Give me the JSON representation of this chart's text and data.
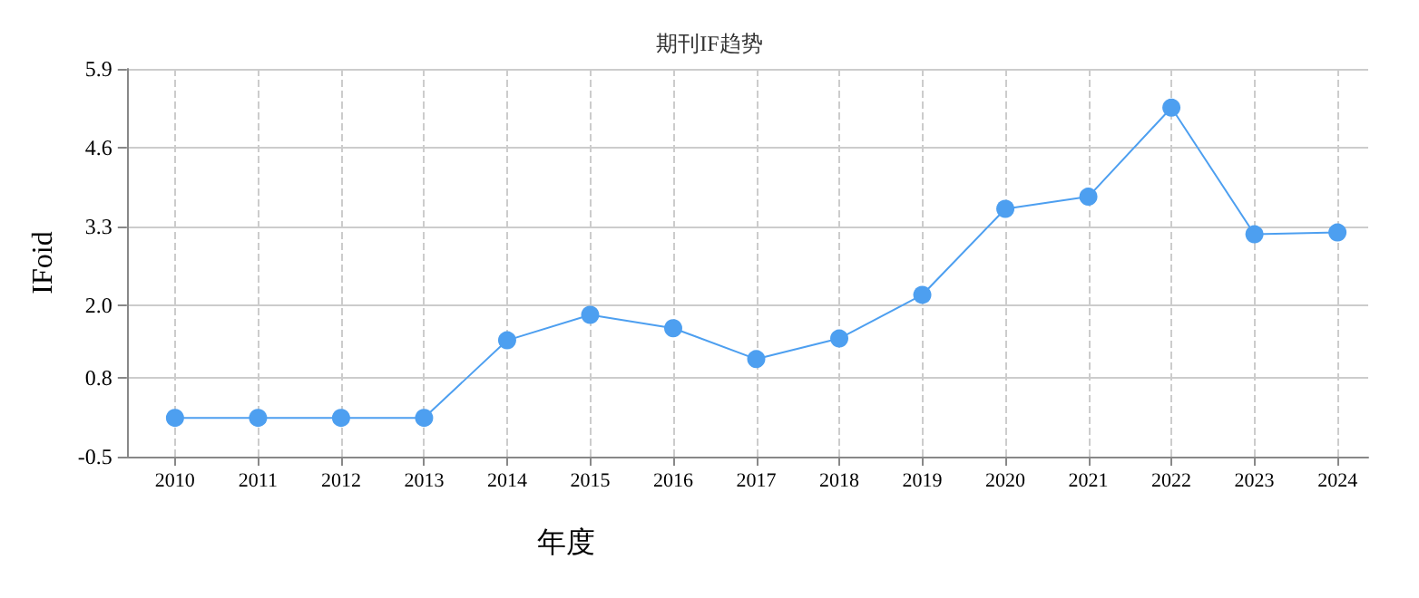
{
  "chart_data": {
    "type": "line",
    "title": "期刊IF趋势",
    "xlabel": "年度",
    "ylabel": "IFoid",
    "x": [
      2010,
      2011,
      2012,
      2013,
      2014,
      2015,
      2016,
      2017,
      2018,
      2019,
      2020,
      2021,
      2022,
      2023,
      2024
    ],
    "xlim": [
      2009.42,
      2024.37
    ],
    "xticks": [
      2010,
      2011,
      2012,
      2013,
      2014,
      2015,
      2016,
      2017,
      2018,
      2019,
      2020,
      2021,
      2022,
      2023,
      2024
    ],
    "ylim": [
      -0.5,
      5.9
    ],
    "yticks": [
      -0.5,
      0.8,
      {
        "value": 2,
        "label": "2.0"
      },
      3.3,
      4.6,
      5.9
    ],
    "series": [
      {
        "color": "#4d9ff0",
        "values": [
          0.14,
          0.14,
          0.14,
          0.14,
          1.42,
          1.84,
          1.62,
          1.11,
          1.45,
          2.17,
          3.59,
          3.79,
          5.26,
          3.17,
          3.2
        ]
      }
    ],
    "grid": true,
    "marker": "circle",
    "line_style": "solid"
  }
}
